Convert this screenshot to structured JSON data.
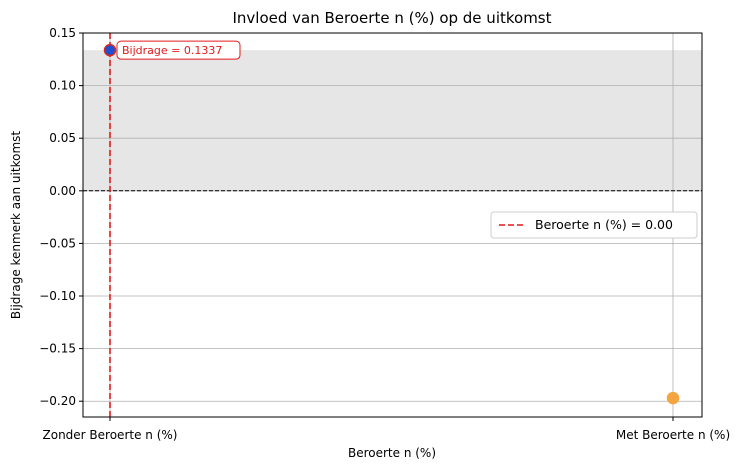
{
  "chart_data": {
    "type": "scatter",
    "title": "Invloed van Beroerte n (%) op de uitkomst",
    "xlabel": "Beroerte n (%)",
    "ylabel": "Bijdrage kenmerk aan uitkomst",
    "categories": [
      "Zonder Beroerte n (%)",
      "Met Beroerte n (%)"
    ],
    "points": [
      {
        "category": "Zonder Beroerte n (%)",
        "value": 0.1337,
        "color": "#1f4fd1",
        "edge_color": "#d62728"
      },
      {
        "category": "Met Beroerte n (%)",
        "value": -0.197,
        "color": "#f5a442",
        "edge_color": "#f5a442"
      }
    ],
    "ylim": [
      -0.215,
      0.15
    ],
    "yticks": [
      0.15,
      0.1,
      0.05,
      0.0,
      -0.05,
      -0.1,
      -0.15,
      -0.2
    ],
    "ytick_labels": [
      "0.15",
      "0.10",
      "0.05",
      "0.00",
      "−0.05",
      "−0.10",
      "−0.15",
      "−0.20"
    ],
    "shaded_band": {
      "from": 0,
      "to": 0.1337,
      "color": "#e6e6e6"
    },
    "zero_line": {
      "value": 0,
      "color": "#000000",
      "style": "dashed"
    },
    "reference_line": {
      "category": "Zonder Beroerte n (%)",
      "color": "#e31a1c",
      "style": "dashed",
      "label": "Beroerte n (%) = 0.00"
    },
    "annotation": {
      "text": "Bijdrage = 0.1337",
      "color": "#e31a1c"
    },
    "legend": {
      "placement": "center-right"
    },
    "grid": true
  }
}
